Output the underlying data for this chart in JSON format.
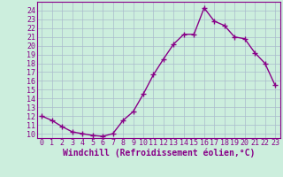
{
  "x": [
    0,
    1,
    2,
    3,
    4,
    5,
    6,
    7,
    8,
    9,
    10,
    11,
    12,
    13,
    14,
    15,
    16,
    17,
    18,
    19,
    20,
    21,
    22,
    23
  ],
  "y": [
    12,
    11.5,
    10.8,
    10.2,
    10.0,
    9.8,
    9.7,
    10.0,
    11.5,
    12.5,
    14.5,
    16.7,
    18.5,
    20.2,
    21.3,
    21.3,
    24.3,
    22.8,
    22.3,
    21.0,
    20.8,
    19.2,
    18.0,
    15.5
  ],
  "line_color": "#880088",
  "marker": "+",
  "marker_size": 4,
  "marker_lw": 1.0,
  "xlabel": "Windchill (Refroidissement éolien,°C)",
  "xlabel_fontsize": 7,
  "bg_color": "#cceedd",
  "grid_color": "#aabbcc",
  "ylim": [
    9.5,
    25.0
  ],
  "xlim": [
    -0.5,
    23.5
  ],
  "yticks": [
    10,
    11,
    12,
    13,
    14,
    15,
    16,
    17,
    18,
    19,
    20,
    21,
    22,
    23,
    24
  ],
  "xticks": [
    0,
    1,
    2,
    3,
    4,
    5,
    6,
    7,
    8,
    9,
    10,
    11,
    12,
    13,
    14,
    15,
    16,
    17,
    18,
    19,
    20,
    21,
    22,
    23
  ],
  "tick_fontsize": 6,
  "line_width": 1.0
}
